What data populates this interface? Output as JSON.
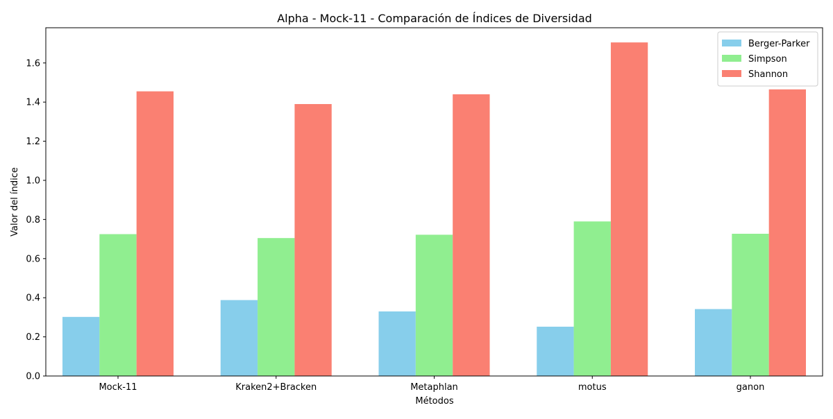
{
  "chart_data": {
    "type": "bar",
    "title": "Alpha - Mock-11 - Comparación de Índices de Diversidad",
    "xlabel": "Métodos",
    "ylabel": "Valor del índice",
    "categories": [
      "Mock-11",
      "Kraken2+Bracken",
      "Metaphlan",
      "motus",
      "ganon"
    ],
    "series": [
      {
        "name": "Berger-Parker",
        "color": "#87CEEB",
        "values": [
          0.302,
          0.388,
          0.33,
          0.252,
          0.342
        ]
      },
      {
        "name": "Simpson",
        "color": "#90EE90",
        "values": [
          0.725,
          0.705,
          0.722,
          0.79,
          0.727
        ]
      },
      {
        "name": "Shannon",
        "color": "#FA8072",
        "values": [
          1.455,
          1.39,
          1.44,
          1.705,
          1.465
        ]
      }
    ],
    "ylim": [
      0,
      1.78
    ],
    "yticks": [
      "0.0",
      "0.2",
      "0.4",
      "0.6",
      "0.8",
      "1.0",
      "1.2",
      "1.4",
      "1.6"
    ],
    "legend_position": "top-right",
    "grid": false
  }
}
